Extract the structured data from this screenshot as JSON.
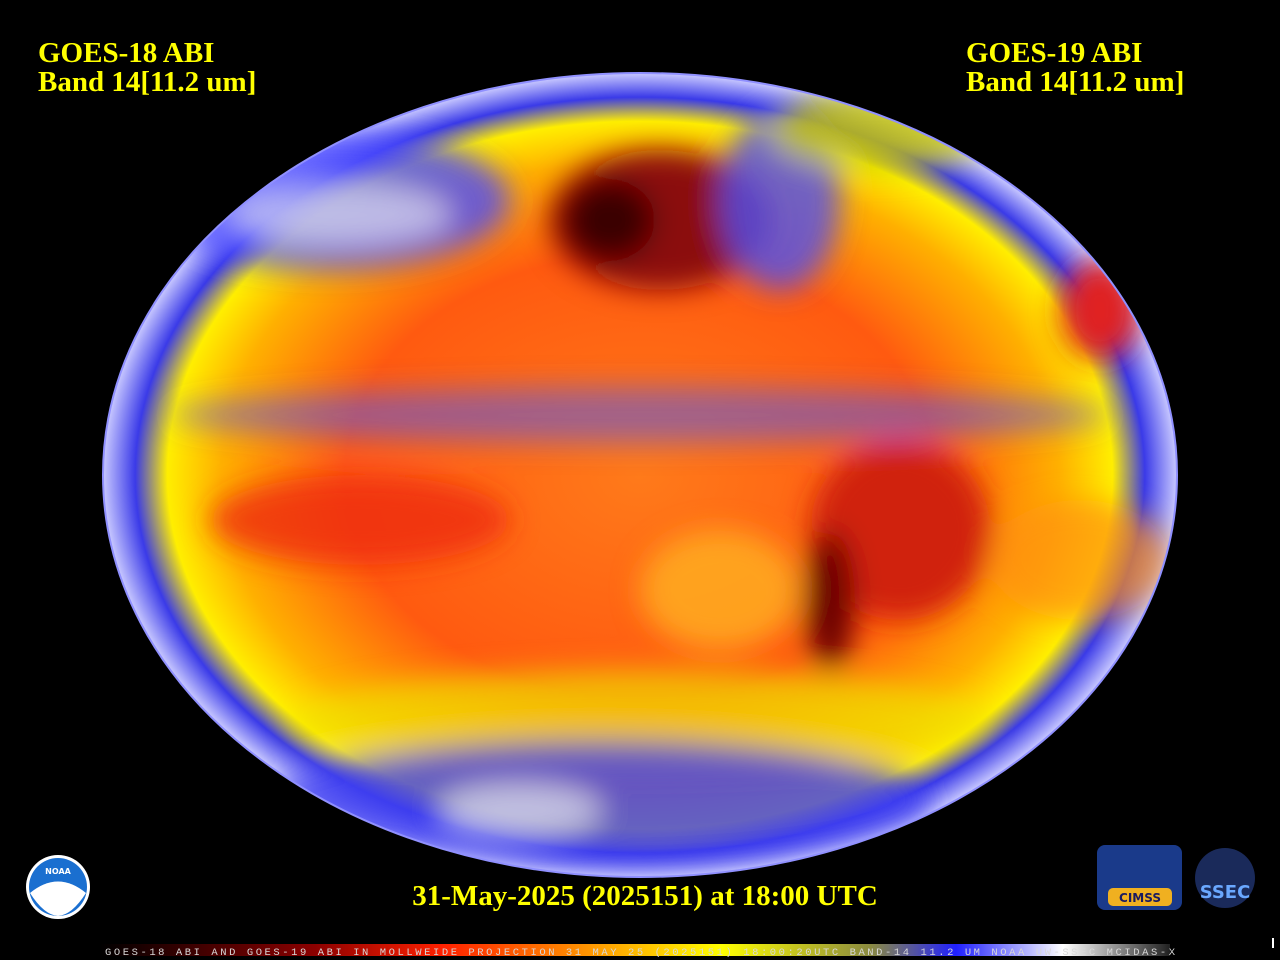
{
  "labels": {
    "left": {
      "line1": "GOES-18 ABI",
      "line2": "Band 14[11.2 um]"
    },
    "right": {
      "line1": "GOES-19 ABI",
      "line2": "Band 14[11.2 um]"
    }
  },
  "timestamp": "31-May-2025 (2025151) at 18:00 UTC",
  "footer": "GOES-18 ABI AND GOES-19 ABI IN MOLLWEIDE PROJECTION 31 MAY 25 (2025151) 18:00:20UTC BAND-14 11.2 UM NOAA UW-SSEC MCIDAS-X",
  "logos": {
    "noaa": "NOAA",
    "cimss": "CIMSS",
    "ssec": "SSEC"
  }
}
